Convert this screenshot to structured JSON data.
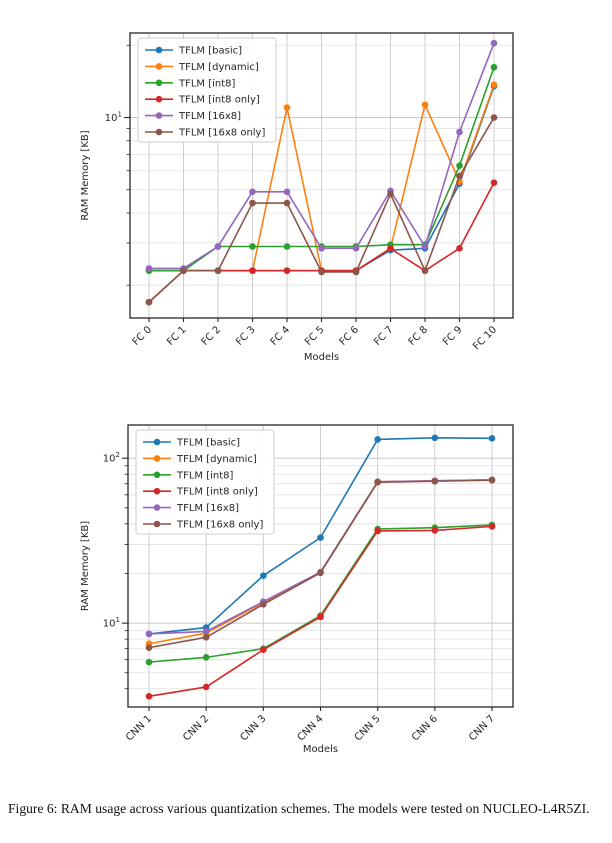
{
  "figure": {
    "caption": "Figure 6: RAM usage across various quantization schemes.  The models were tested on NUCLEO-L4R5ZI."
  },
  "axes": {
    "ylabel": "RAM Memory [KB]",
    "xlabel": "Models",
    "text_color": "#262626",
    "grid_major_color": "#c8c8c8",
    "grid_minor_color": "#e0e0e0",
    "spine_color": "#262626"
  },
  "chart_data": [
    {
      "type": "line",
      "title": "",
      "xlabel": "Models",
      "ylabel": "RAM Memory [KB]",
      "yscale": "log",
      "ylim": [
        1.46,
        22.5
      ],
      "grid": "both",
      "legend_position": "upper left",
      "categories": [
        "FC 0",
        "FC 1",
        "FC 2",
        "FC 3",
        "FC 4",
        "FC 5",
        "FC 6",
        "FC 7",
        "FC 8",
        "FC 9",
        "FC 10"
      ],
      "series": [
        {
          "name": "TFLM [basic]",
          "color": "#1f77b4",
          "values": [
            2.3,
            2.3,
            2.3,
            2.3,
            2.3,
            2.3,
            2.3,
            2.8,
            2.85,
            5.3,
            13.5
          ]
        },
        {
          "name": "TFLM [dynamic]",
          "color": "#ff7f0e",
          "values": [
            2.3,
            2.3,
            2.3,
            2.3,
            11.0,
            2.3,
            2.3,
            2.85,
            11.3,
            5.4,
            13.7
          ]
        },
        {
          "name": "TFLM [int8]",
          "color": "#2ca02c",
          "values": [
            2.3,
            2.3,
            2.9,
            2.9,
            2.9,
            2.9,
            2.9,
            2.95,
            2.95,
            6.3,
            16.2
          ]
        },
        {
          "name": "TFLM [int8 only]",
          "color": "#d62728",
          "values": [
            1.7,
            2.3,
            2.3,
            2.3,
            2.3,
            2.3,
            2.3,
            2.84,
            2.3,
            2.85,
            5.35
          ]
        },
        {
          "name": "TFLM [16x8]",
          "color": "#9467bd",
          "values": [
            2.35,
            2.35,
            2.9,
            4.9,
            4.9,
            2.85,
            2.85,
            4.95,
            2.9,
            8.7,
            20.4
          ]
        },
        {
          "name": "TFLM [16x8 only]",
          "color": "#8c564b",
          "values": [
            1.7,
            2.3,
            2.3,
            4.4,
            4.4,
            2.27,
            2.27,
            4.8,
            2.3,
            5.7,
            10.0
          ]
        }
      ]
    },
    {
      "type": "line",
      "title": "",
      "xlabel": "Models",
      "ylabel": "RAM Memory [KB]",
      "yscale": "log",
      "ylim": [
        3.1,
        159
      ],
      "grid": "both",
      "legend_position": "upper left",
      "categories": [
        "CNN 1",
        "CNN 2",
        "CNN 3",
        "CNN 4",
        "CNN 5",
        "CNN 6",
        "CNN 7"
      ],
      "series": [
        {
          "name": "TFLM [basic]",
          "color": "#1f77b4",
          "values": [
            8.6,
            9.4,
            19.4,
            33.0,
            130,
            133,
            132
          ]
        },
        {
          "name": "TFLM [dynamic]",
          "color": "#ff7f0e",
          "values": [
            7.5,
            8.7,
            13.3,
            20.3,
            72,
            73,
            74
          ]
        },
        {
          "name": "TFLM [int8]",
          "color": "#2ca02c",
          "values": [
            5.8,
            6.2,
            7.0,
            11.1,
            37.2,
            37.9,
            39.4
          ]
        },
        {
          "name": "TFLM [int8 only]",
          "color": "#d62728",
          "values": [
            3.6,
            4.1,
            6.9,
            10.9,
            36.2,
            36.5,
            38.6
          ]
        },
        {
          "name": "TFLM [16x8]",
          "color": "#9467bd",
          "values": [
            8.6,
            8.9,
            13.5,
            20.4,
            72.0,
            73.0,
            74.0
          ]
        },
        {
          "name": "TFLM [16x8 only]",
          "color": "#8c564b",
          "values": [
            7.1,
            8.2,
            13.0,
            20.2,
            71.5,
            72.5,
            73.5
          ]
        }
      ]
    }
  ]
}
